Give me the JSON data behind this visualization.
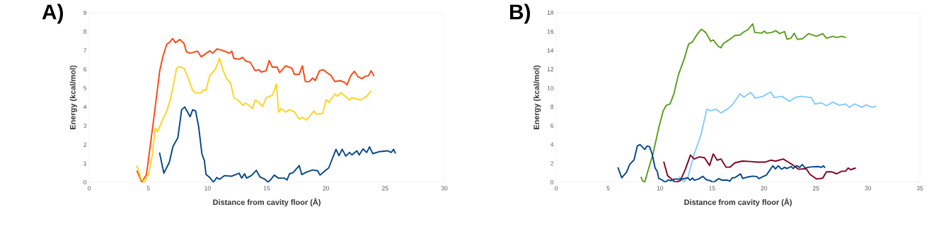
{
  "chart_data": [
    {
      "type": "line",
      "title": "A)",
      "xlabel": "Distance from cavity floor (Å)",
      "ylabel": "Energy (kcal/mol)",
      "xlim": [
        0,
        30
      ],
      "ylim": [
        0,
        9
      ],
      "xticks": [
        0,
        5,
        10,
        15,
        20,
        25,
        30
      ],
      "yticks": [
        0,
        1,
        2,
        3,
        4,
        5,
        6,
        7,
        8,
        9
      ],
      "series": [
        {
          "color": "#ff420e",
          "x": [
            4.02,
            4.45,
            4.84,
            5.42,
            5.96,
            6.21,
            6.56,
            6.77,
            7.04,
            7.29,
            7.66,
            8.01,
            8.22,
            8.53,
            9.15,
            9.46,
            10.19,
            10.43,
            10.8,
            11.42,
            11.84,
            12.05,
            12.22,
            12.67,
            12.98,
            13.19,
            13.6,
            14.02,
            14.33,
            14.53,
            14.95,
            15.2,
            15.47,
            15.88,
            16.09,
            16.6,
            17.12,
            17.33,
            17.74,
            18.01,
            18.26,
            18.57,
            18.88,
            19.09,
            19.46,
            19.75,
            20.02,
            20.43,
            20.75,
            21.16,
            21.57,
            21.78,
            22.09,
            22.4,
            22.71,
            23.02,
            23.33,
            23.6,
            23.81,
            24.06
          ],
          "values": [
            0.61,
            0,
            0.41,
            3.2,
            5.92,
            6.63,
            7.34,
            7.41,
            7.63,
            7.41,
            7.58,
            7.37,
            6.92,
            6.85,
            6.96,
            6.66,
            6.98,
            6.85,
            7.08,
            6.96,
            6.85,
            6.96,
            6.57,
            6.53,
            6.63,
            6.44,
            6.37,
            5.92,
            5.98,
            5.85,
            5.92,
            6.46,
            6.11,
            6.11,
            5.82,
            6.18,
            6.05,
            5.73,
            5.73,
            6.18,
            5.34,
            5.34,
            5.53,
            5.4,
            5.92,
            5.98,
            5.85,
            5.66,
            5.34,
            5.4,
            5.3,
            5.17,
            5.66,
            5.89,
            5.6,
            5.5,
            5.63,
            5.66,
            5.92,
            5.63
          ]
        },
        {
          "color": "#ffd320",
          "x": [
            4.02,
            4.39,
            4.7,
            5.01,
            5.32,
            5.59,
            5.78,
            6.15,
            6.56,
            6.87,
            7.39,
            7.6,
            8.01,
            8.28,
            8.74,
            8.99,
            9.46,
            9.67,
            9.87,
            10.19,
            10.7,
            11.01,
            11.32,
            11.63,
            11.94,
            12.22,
            12.67,
            12.98,
            13.19,
            13.5,
            13.81,
            14.02,
            14.33,
            14.64,
            14.95,
            15.47,
            15.82,
            15.99,
            16.19,
            16.6,
            16.92,
            17.33,
            17.74,
            18.01,
            18.36,
            18.98,
            19.19,
            19.71,
            20.02,
            20.23,
            20.75,
            20.96,
            21.26,
            21.99,
            22.2,
            22.92,
            23.44,
            23.81
          ],
          "values": [
            0.89,
            0.16,
            0.03,
            0.41,
            1.39,
            2.88,
            2.68,
            3.26,
            3.78,
            4.43,
            6.05,
            6.14,
            6.05,
            5.66,
            4.88,
            4.73,
            4.75,
            4.91,
            4.88,
            5.66,
            6.05,
            6.59,
            5.92,
            5.47,
            5.27,
            4.49,
            4.3,
            4.08,
            4.21,
            4.08,
            3.91,
            4.37,
            4.24,
            4.02,
            4.49,
            4.62,
            5.21,
            3.72,
            3.91,
            3.72,
            3.85,
            3.74,
            3.35,
            3.45,
            3.3,
            3.78,
            3.61,
            3.65,
            4.39,
            4.24,
            4.69,
            4.56,
            4.75,
            4.37,
            4.49,
            4.37,
            4.56,
            4.86
          ]
        },
        {
          "color": "#004586",
          "x": [
            5.94,
            6.31,
            6.77,
            7.08,
            7.49,
            7.81,
            8.07,
            8.53,
            8.74,
            8.99,
            9.25,
            9.52,
            9.73,
            9.87,
            10.19,
            10.5,
            10.77,
            11.01,
            11.42,
            12.05,
            12.67,
            12.88,
            13.13,
            13.29,
            13.7,
            14.12,
            14.43,
            14.84,
            15.11,
            15.36,
            15.63,
            15.98,
            16.5,
            16.71,
            16.92,
            17.23,
            17.74,
            17.95,
            18.36,
            18.88,
            19.3,
            19.5,
            19.92,
            20.23,
            20.85,
            21.1,
            21.37,
            21.68,
            21.99,
            22.2,
            22.61,
            22.81,
            23.13,
            23.44,
            23.68,
            23.95,
            24.47,
            25.2,
            25.51,
            25.71,
            25.88
          ],
          "values": [
            1.58,
            0.48,
            1.06,
            1.9,
            2.36,
            3.85,
            4.0,
            3.48,
            3.85,
            3.78,
            2.94,
            1.52,
            1.15,
            0.41,
            0.25,
            0,
            0.25,
            0.16,
            0.35,
            0.32,
            0.48,
            0.22,
            0.45,
            0.22,
            0.35,
            0.63,
            0.28,
            0.16,
            0,
            0.16,
            0.38,
            0.22,
            0.22,
            0.12,
            0.45,
            0.51,
            0.89,
            0.41,
            0.54,
            0.65,
            0.61,
            0.38,
            0.61,
            0.76,
            1.75,
            1.41,
            1.75,
            1.39,
            1.58,
            1.45,
            1.67,
            1.45,
            1.77,
            1.58,
            1.88,
            1.52,
            1.62,
            1.67,
            1.58,
            1.75,
            1.52
          ]
        }
      ]
    },
    {
      "type": "line",
      "title": "B)",
      "xlabel": "Distance from cavity floor (Å)",
      "ylabel": "Energy (kcal/mol)",
      "xlim": [
        0,
        35
      ],
      "ylim": [
        0,
        18
      ],
      "xticks": [
        0,
        5,
        10,
        15,
        20,
        25,
        30,
        35
      ],
      "yticks": [
        0,
        2,
        4,
        6,
        8,
        10,
        12,
        14,
        16,
        18
      ],
      "series": [
        {
          "color": "#579d1c",
          "x": [
            8.15,
            8.32,
            8.52,
            8.88,
            9.32,
            9.86,
            10.3,
            10.6,
            10.96,
            11.33,
            11.77,
            12.31,
            12.75,
            13.1,
            13.53,
            13.97,
            14.39,
            14.88,
            15.12,
            15.37,
            15.61,
            15.86,
            16.1,
            16.6,
            17.2,
            17.69,
            17.99,
            18.43,
            18.92,
            19.11,
            19.77,
            20.02,
            20.27,
            20.76,
            21.13,
            21.49,
            21.98,
            22.22,
            22.59,
            22.91,
            23.2,
            23.69,
            24.3,
            24.67,
            25.04,
            25.65,
            26.01,
            26.63,
            26.99,
            27.48,
            27.88
          ],
          "values": [
            0.57,
            0.16,
            0,
            1.38,
            3.01,
            5.73,
            7.58,
            8.17,
            8.31,
            9.39,
            11.43,
            13.06,
            14.69,
            14.88,
            15.64,
            16.24,
            15.91,
            14.96,
            15.1,
            14.74,
            14.42,
            14.28,
            14.74,
            15.1,
            15.58,
            15.64,
            15.91,
            16.18,
            16.81,
            15.91,
            15.83,
            16.04,
            15.83,
            15.91,
            16.1,
            15.78,
            16.0,
            15.18,
            15.29,
            15.83,
            15.18,
            15.23,
            15.78,
            15.64,
            15.5,
            15.78,
            15.29,
            15.5,
            15.37,
            15.5,
            15.37
          ]
        },
        {
          "color": "#83caff",
          "x": [
            11.82,
            12.31,
            12.68,
            13.29,
            13.9,
            14.51,
            14.88,
            15.37,
            15.86,
            16.47,
            16.96,
            17.69,
            18.06,
            18.72,
            19.16,
            19.9,
            20.63,
            21.0,
            21.73,
            22.47,
            22.96,
            23.57,
            24.55,
            24.91,
            25.53,
            26.01,
            26.63,
            27.24,
            27.85,
            28.22,
            28.71,
            29.44,
            29.81,
            30.42,
            30.81
          ],
          "values": [
            0.57,
            0.03,
            0.57,
            3.01,
            4.91,
            7.77,
            7.58,
            7.77,
            7.36,
            7.77,
            8.23,
            9.39,
            9.04,
            9.53,
            8.93,
            9.12,
            9.58,
            8.99,
            9.12,
            8.58,
            8.99,
            9.12,
            8.99,
            8.31,
            8.44,
            8.12,
            8.5,
            8.17,
            8.31,
            7.96,
            8.31,
            7.96,
            8.23,
            7.96,
            8.09
          ]
        },
        {
          "color": "#7e0021",
          "x": [
            10.35,
            10.72,
            11.45,
            11.94,
            12.43,
            12.92,
            13.29,
            13.78,
            14.27,
            14.76,
            15.12,
            15.49,
            15.86,
            16.35,
            16.72,
            17.2,
            17.93,
            18.67,
            19.4,
            20.14,
            20.63,
            21.12,
            21.85,
            22.34,
            22.83,
            23.32,
            24.06,
            24.42,
            25.04,
            25.65,
            26.01,
            26.5,
            26.99,
            27.48,
            27.85,
            28.1,
            28.34,
            28.83
          ],
          "values": [
            2.2,
            0.71,
            0,
            0.16,
            1.38,
            2.88,
            2.47,
            2.69,
            2.61,
            1.79,
            3.01,
            2.34,
            2.47,
            1.6,
            1.6,
            2.06,
            2.25,
            2.2,
            2.14,
            2.14,
            2.34,
            2.25,
            2.47,
            2.14,
            1.79,
            1.38,
            1.44,
            0.84,
            0.35,
            0.43,
            1.11,
            1.11,
            0.9,
            1.17,
            1.17,
            1.52,
            1.33,
            1.52
          ]
        },
        {
          "color": "#004586",
          "x": [
            5.94,
            6.31,
            6.77,
            7.08,
            7.49,
            7.81,
            8.07,
            8.53,
            8.74,
            8.99,
            9.25,
            9.52,
            9.73,
            9.87,
            10.19,
            10.5,
            10.77,
            11.01,
            11.42,
            12.05,
            12.67,
            12.88,
            13.13,
            13.29,
            13.7,
            14.12,
            14.43,
            14.84,
            15.11,
            15.36,
            15.63,
            15.98,
            16.5,
            16.71,
            16.92,
            17.23,
            17.74,
            17.95,
            18.36,
            18.88,
            19.3,
            19.5,
            19.92,
            20.23,
            20.85,
            21.1,
            21.37,
            21.68,
            21.99,
            22.2,
            22.61,
            22.81,
            23.13,
            23.44,
            23.68,
            23.95,
            24.47,
            25.2,
            25.51,
            25.71,
            25.88
          ],
          "values": [
            1.58,
            0.48,
            1.06,
            1.9,
            2.36,
            3.85,
            4.0,
            3.48,
            3.85,
            3.78,
            2.94,
            1.52,
            1.15,
            0.41,
            0.25,
            0,
            0.25,
            0.16,
            0.35,
            0.32,
            0.48,
            0.22,
            0.45,
            0.22,
            0.35,
            0.63,
            0.28,
            0.16,
            0,
            0.16,
            0.38,
            0.22,
            0.22,
            0.12,
            0.45,
            0.51,
            0.89,
            0.41,
            0.54,
            0.65,
            0.61,
            0.38,
            0.61,
            0.76,
            1.75,
            1.41,
            1.75,
            1.39,
            1.58,
            1.45,
            1.67,
            1.45,
            1.77,
            1.58,
            1.88,
            1.52,
            1.62,
            1.67,
            1.58,
            1.75,
            1.52
          ]
        }
      ]
    }
  ]
}
